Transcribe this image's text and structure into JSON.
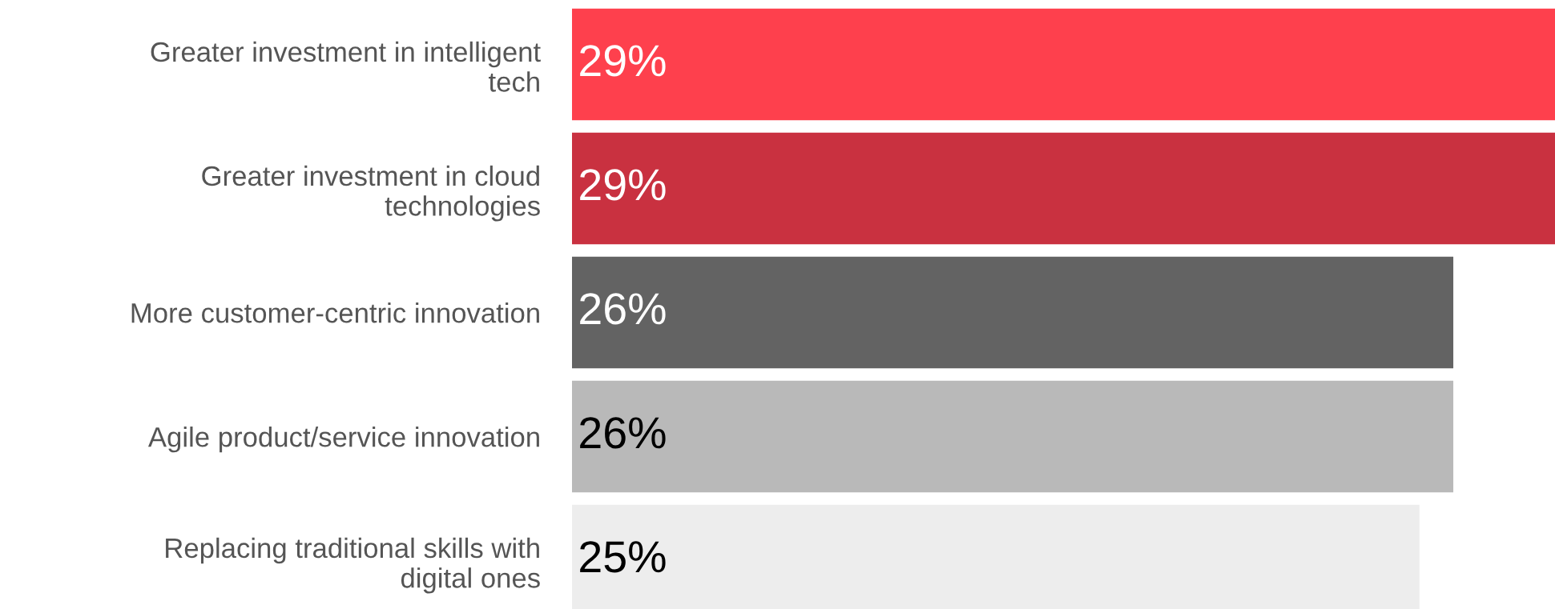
{
  "chart_data": {
    "type": "bar",
    "orientation": "horizontal",
    "categories": [
      "Greater investment in intelligent\ntech",
      "Greater investment in cloud\ntechnologies",
      "More customer-centric innovation",
      "Agile product/service innovation",
      "Replacing traditional skills with\ndigital ones"
    ],
    "values": [
      29,
      29,
      26,
      26,
      25
    ],
    "colors": [
      "#fe404d",
      "#c93140",
      "#636363",
      "#b9b9b9",
      "#ededed"
    ],
    "value_labels": [
      "29%",
      "29%",
      "26%",
      "26%",
      "25%"
    ],
    "tick_labels": "y",
    "grid": false,
    "legend": false
  }
}
